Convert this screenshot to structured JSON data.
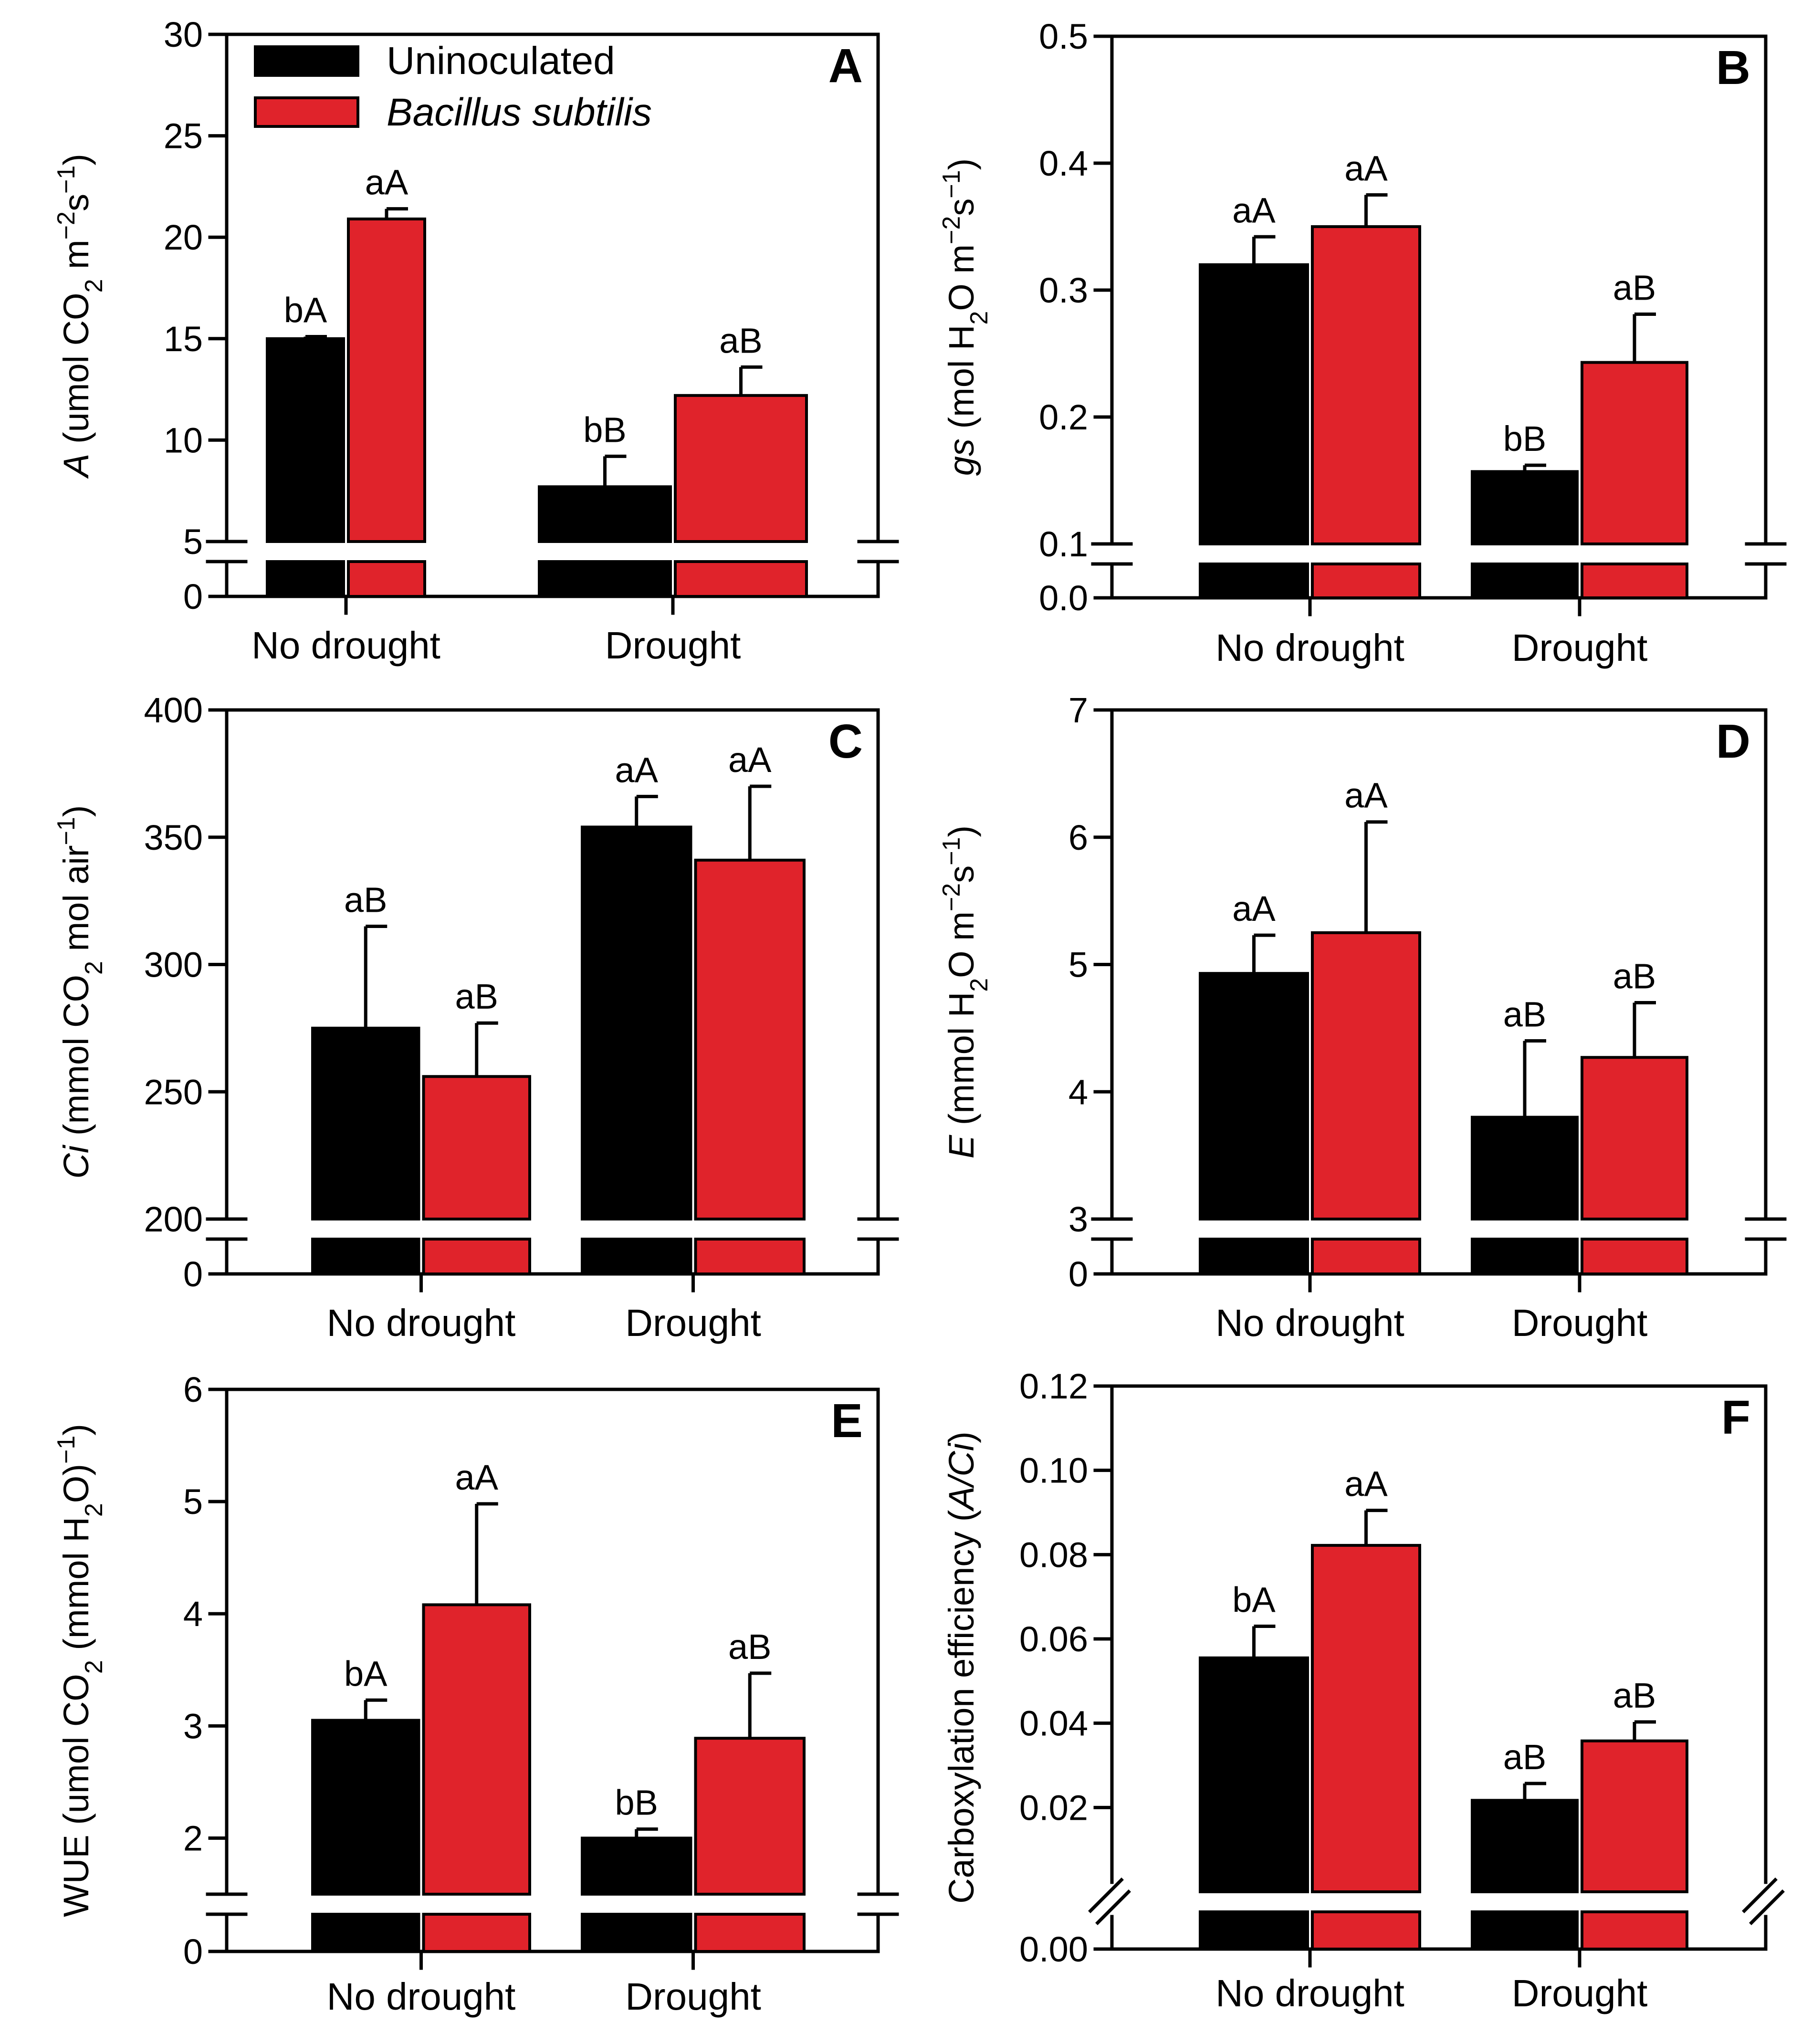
{
  "figure": {
    "colors": {
      "uninoculated": "#000000",
      "bacillus": "#e0232b"
    },
    "legend": {
      "label_uninoculated": "Uninoculated",
      "label_bacillus": "Bacillus subtilis",
      "placement": "top-left of panel A"
    }
  },
  "chart_data": [
    {
      "id": "A",
      "type": "bar",
      "panel_letter": "A",
      "categories": [
        "No drought",
        "Drought"
      ],
      "ylim": [
        5,
        30
      ],
      "yticks": [
        5,
        10,
        15,
        20,
        25,
        30
      ],
      "ticklabels": [
        "5",
        "10",
        "15",
        "20",
        "25",
        "30"
      ],
      "axis_break": true,
      "zero_label": "0",
      "break_style": "horizontal",
      "ylabel_parts": [
        {
          "t": "A",
          "i": true
        },
        {
          "t": " (umol CO"
        },
        {
          "t": "2",
          "sub": true
        },
        {
          "t": " m"
        },
        {
          "t": "−2",
          "sup": true
        },
        {
          "t": "s"
        },
        {
          "t": "−1",
          "sup": true
        },
        {
          "t": ")"
        }
      ],
      "series": [
        {
          "name": "Uninoculated",
          "values": [
            15.0,
            7.7
          ],
          "errors": [
            0.1,
            1.5
          ],
          "labels": [
            "bA",
            "bB"
          ]
        },
        {
          "name": "Bacillus subtilis",
          "values": [
            20.9,
            12.2
          ],
          "errors": [
            0.5,
            1.4
          ],
          "labels": [
            "aA",
            "aB"
          ]
        }
      ]
    },
    {
      "id": "B",
      "type": "bar",
      "panel_letter": "B",
      "categories": [
        "No drought",
        "Drought"
      ],
      "ylim": [
        0.1,
        0.5
      ],
      "yticks": [
        0.1,
        0.2,
        0.3,
        0.4,
        0.5
      ],
      "ticklabels": [
        "0.1",
        "0.2",
        "0.3",
        "0.4",
        "0.5"
      ],
      "axis_break": true,
      "zero_label": "0.0",
      "break_style": "horizontal",
      "ylabel_parts": [
        {
          "t": "gs",
          "i": true
        },
        {
          "t": " (mol H"
        },
        {
          "t": "2",
          "sub": true
        },
        {
          "t": "O m"
        },
        {
          "t": "−2",
          "sup": true
        },
        {
          "t": "s"
        },
        {
          "t": "−1",
          "sup": true
        },
        {
          "t": ")"
        }
      ],
      "series": [
        {
          "name": "Uninoculated",
          "values": [
            0.32,
            0.157
          ],
          "errors": [
            0.022,
            0.005
          ],
          "labels": [
            "aA",
            "bB"
          ]
        },
        {
          "name": "Bacillus subtilis",
          "values": [
            0.35,
            0.243
          ],
          "errors": [
            0.025,
            0.038
          ],
          "labels": [
            "aA",
            "aB"
          ]
        }
      ]
    },
    {
      "id": "C",
      "type": "bar",
      "panel_letter": "C",
      "categories": [
        "No drought",
        "Drought"
      ],
      "ylim": [
        200,
        400
      ],
      "yticks": [
        200,
        250,
        300,
        350,
        400
      ],
      "ticklabels": [
        "200",
        "250",
        "300",
        "350",
        "400"
      ],
      "axis_break": true,
      "zero_label": "0",
      "break_style": "horizontal",
      "ylabel_parts": [
        {
          "t": "Ci",
          "i": true
        },
        {
          "t": " (mmol CO"
        },
        {
          "t": "2",
          "sub": true
        },
        {
          "t": " mol air"
        },
        {
          "t": "−1",
          "sup": true
        },
        {
          "t": ")"
        }
      ],
      "series": [
        {
          "name": "Uninoculated",
          "values": [
            275,
            354
          ],
          "errors": [
            40,
            12
          ],
          "labels": [
            "aB",
            "aA"
          ]
        },
        {
          "name": "Bacillus subtilis",
          "values": [
            256,
            341
          ],
          "errors": [
            21,
            29
          ],
          "labels": [
            "aB",
            "aA"
          ]
        }
      ]
    },
    {
      "id": "D",
      "type": "bar",
      "panel_letter": "D",
      "categories": [
        "No drought",
        "Drought"
      ],
      "ylim": [
        3,
        7
      ],
      "yticks": [
        3,
        4,
        5,
        6,
        7
      ],
      "ticklabels": [
        "3",
        "4",
        "5",
        "6",
        "7"
      ],
      "axis_break": true,
      "zero_label": "0",
      "break_style": "horizontal",
      "ylabel_parts": [
        {
          "t": "E",
          "i": true
        },
        {
          "t": " (mmol H"
        },
        {
          "t": "2",
          "sub": true
        },
        {
          "t": "O m"
        },
        {
          "t": "−2",
          "sup": true
        },
        {
          "t": "s"
        },
        {
          "t": "−1",
          "sup": true
        },
        {
          "t": ")"
        }
      ],
      "series": [
        {
          "name": "Uninoculated",
          "values": [
            4.93,
            3.8
          ],
          "errors": [
            0.3,
            0.6
          ],
          "labels": [
            "aA",
            "aB"
          ]
        },
        {
          "name": "Bacillus subtilis",
          "values": [
            5.25,
            4.27
          ],
          "errors": [
            0.87,
            0.43
          ],
          "labels": [
            "aA",
            "aB"
          ]
        }
      ]
    },
    {
      "id": "E",
      "type": "bar",
      "panel_letter": "E",
      "categories": [
        "No drought",
        "Drought"
      ],
      "ylim": [
        1.5,
        6
      ],
      "yticks": [
        2,
        3,
        4,
        5,
        6
      ],
      "ticklabels": [
        "2",
        "3",
        "4",
        "5",
        "6"
      ],
      "axis_break": true,
      "zero_label": "0",
      "break_style": "horizontal",
      "ylabel_parts": [
        {
          "t": "WUE (umol CO"
        },
        {
          "t": "2",
          "sub": true
        },
        {
          "t": " (mmol H"
        },
        {
          "t": "2",
          "sub": true
        },
        {
          "t": "O)"
        },
        {
          "t": "−1",
          "sup": true
        },
        {
          "t": ")"
        }
      ],
      "series": [
        {
          "name": "Uninoculated",
          "values": [
            3.05,
            2.0
          ],
          "errors": [
            0.18,
            0.08
          ],
          "labels": [
            "bA",
            "bB"
          ]
        },
        {
          "name": "Bacillus subtilis",
          "values": [
            4.08,
            2.89
          ],
          "errors": [
            0.9,
            0.58
          ],
          "labels": [
            "aA",
            "aB"
          ]
        }
      ]
    },
    {
      "id": "F",
      "type": "bar",
      "panel_letter": "F",
      "categories": [
        "No drought",
        "Drought"
      ],
      "ylim": [
        0.0,
        0.12
      ],
      "yticks": [
        0.02,
        0.04,
        0.06,
        0.08,
        0.1,
        0.12
      ],
      "ticklabels": [
        "0.02",
        "0.04",
        "0.06",
        "0.08",
        "0.10",
        "0.12"
      ],
      "axis_break": true,
      "zero_label": "0.00",
      "break_style": "diagonal",
      "ylabel_parts": [
        {
          "t": "Carboxylation efficiency ("
        },
        {
          "t": "A/Ci",
          "i": true
        },
        {
          "t": ")"
        }
      ],
      "series": [
        {
          "name": "Uninoculated",
          "values": [
            0.0555,
            0.0217
          ],
          "errors": [
            0.0075,
            0.004
          ],
          "labels": [
            "bA",
            "aB"
          ]
        },
        {
          "name": "Bacillus subtilis",
          "values": [
            0.0822,
            0.0358
          ],
          "errors": [
            0.0083,
            0.0045
          ],
          "labels": [
            "aA",
            "aB"
          ]
        }
      ]
    }
  ]
}
